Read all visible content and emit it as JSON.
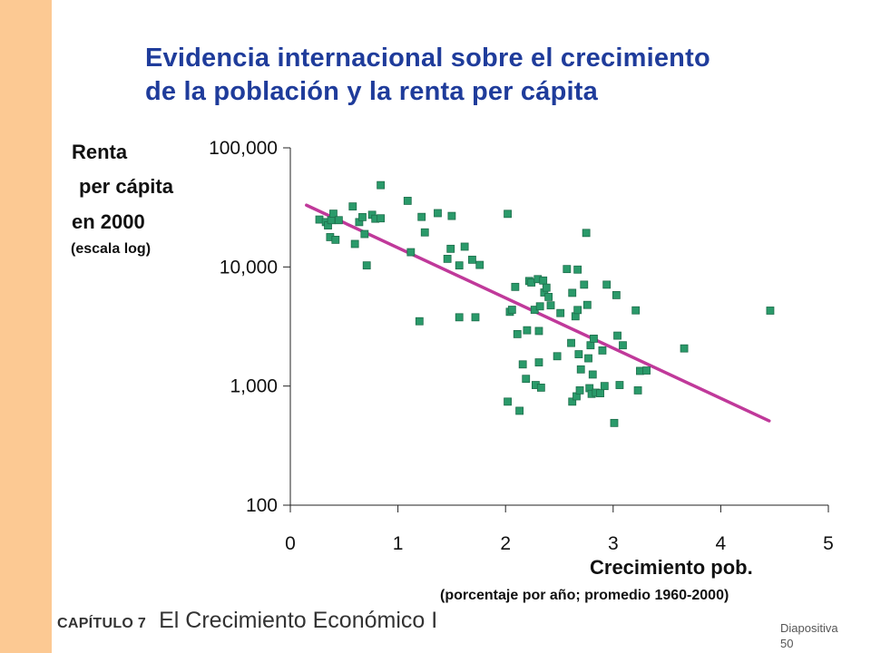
{
  "slide": {
    "title_line1": "Evidencia internacional sobre el crecimiento",
    "title_line2": "de la población y la renta per cápita",
    "chapter": "CAPÍTULO 7",
    "chapter_title": "El Crecimiento Económico I",
    "slide_label": "Diapositiva",
    "slide_number": "50",
    "accent_color": "#1f3c9b",
    "sidebar_color": "#fcc993"
  },
  "chart_data": {
    "type": "scatter",
    "y_scale": "log",
    "ylabel_lines": [
      "Renta",
      "per cápita",
      "en 2000"
    ],
    "ylabel_note": "(escala log)",
    "xlabel": "Crecimiento pob.",
    "xlabel_note": "(porcentaje por año; promedio 1960-2000)",
    "xlim": [
      0,
      5
    ],
    "ylim": [
      100,
      100000
    ],
    "x_ticks": [
      "0",
      "1",
      "2",
      "3",
      "4",
      "5"
    ],
    "y_ticks": [
      {
        "value": 100,
        "label": "100"
      },
      {
        "value": 1000,
        "label": "1,000"
      },
      {
        "value": 10000,
        "label": "10,000"
      },
      {
        "value": 100000,
        "label": "100,000"
      }
    ],
    "grid": false,
    "marker_color": "#2a9a6a",
    "trend_color": "#c0399a",
    "trend_line": {
      "x": [
        0.15,
        4.45
      ],
      "y": [
        33000,
        510
      ]
    },
    "points": [
      {
        "x": 0.27,
        "y": 25000
      },
      {
        "x": 0.33,
        "y": 23800
      },
      {
        "x": 0.35,
        "y": 22300
      },
      {
        "x": 0.38,
        "y": 24700
      },
      {
        "x": 0.37,
        "y": 17800
      },
      {
        "x": 0.4,
        "y": 28000
      },
      {
        "x": 0.42,
        "y": 16900
      },
      {
        "x": 0.45,
        "y": 24700
      },
      {
        "x": 0.58,
        "y": 32200
      },
      {
        "x": 0.6,
        "y": 15600
      },
      {
        "x": 0.64,
        "y": 23800
      },
      {
        "x": 0.67,
        "y": 26200
      },
      {
        "x": 0.69,
        "y": 18900
      },
      {
        "x": 0.71,
        "y": 10300
      },
      {
        "x": 0.76,
        "y": 27400
      },
      {
        "x": 0.79,
        "y": 25400
      },
      {
        "x": 0.84,
        "y": 25600
      },
      {
        "x": 0.84,
        "y": 48600
      },
      {
        "x": 1.09,
        "y": 35900
      },
      {
        "x": 1.12,
        "y": 13300
      },
      {
        "x": 1.2,
        "y": 3500
      },
      {
        "x": 1.22,
        "y": 26300
      },
      {
        "x": 1.25,
        "y": 19500
      },
      {
        "x": 1.37,
        "y": 28300
      },
      {
        "x": 1.46,
        "y": 11700
      },
      {
        "x": 1.49,
        "y": 14200
      },
      {
        "x": 1.5,
        "y": 26800
      },
      {
        "x": 1.57,
        "y": 10300
      },
      {
        "x": 1.57,
        "y": 3780
      },
      {
        "x": 1.62,
        "y": 14800
      },
      {
        "x": 1.69,
        "y": 11500
      },
      {
        "x": 1.72,
        "y": 3780
      },
      {
        "x": 1.76,
        "y": 10400
      },
      {
        "x": 2.02,
        "y": 27900
      },
      {
        "x": 2.02,
        "y": 740
      },
      {
        "x": 2.04,
        "y": 4200
      },
      {
        "x": 2.06,
        "y": 4370
      },
      {
        "x": 2.09,
        "y": 6800
      },
      {
        "x": 2.11,
        "y": 2730
      },
      {
        "x": 2.13,
        "y": 620
      },
      {
        "x": 2.16,
        "y": 1520
      },
      {
        "x": 2.19,
        "y": 1150
      },
      {
        "x": 2.2,
        "y": 2940
      },
      {
        "x": 2.22,
        "y": 7620
      },
      {
        "x": 2.24,
        "y": 7400
      },
      {
        "x": 2.27,
        "y": 4370
      },
      {
        "x": 2.28,
        "y": 1020
      },
      {
        "x": 2.3,
        "y": 7900
      },
      {
        "x": 2.31,
        "y": 2900
      },
      {
        "x": 2.31,
        "y": 1580
      },
      {
        "x": 2.32,
        "y": 4670
      },
      {
        "x": 2.33,
        "y": 970
      },
      {
        "x": 2.35,
        "y": 7690
      },
      {
        "x": 2.36,
        "y": 6100
      },
      {
        "x": 2.38,
        "y": 6700
      },
      {
        "x": 2.4,
        "y": 5600
      },
      {
        "x": 2.42,
        "y": 4760
      },
      {
        "x": 2.48,
        "y": 1780
      },
      {
        "x": 2.51,
        "y": 4100
      },
      {
        "x": 2.57,
        "y": 9600
      },
      {
        "x": 2.61,
        "y": 2300
      },
      {
        "x": 2.62,
        "y": 6060
      },
      {
        "x": 2.62,
        "y": 740
      },
      {
        "x": 2.65,
        "y": 3850
      },
      {
        "x": 2.66,
        "y": 820
      },
      {
        "x": 2.67,
        "y": 9500
      },
      {
        "x": 2.67,
        "y": 4350
      },
      {
        "x": 2.68,
        "y": 1850
      },
      {
        "x": 2.69,
        "y": 920
      },
      {
        "x": 2.7,
        "y": 1380
      },
      {
        "x": 2.73,
        "y": 7100
      },
      {
        "x": 2.75,
        "y": 19300
      },
      {
        "x": 2.76,
        "y": 4800
      },
      {
        "x": 2.77,
        "y": 1710
      },
      {
        "x": 2.78,
        "y": 960
      },
      {
        "x": 2.79,
        "y": 2200
      },
      {
        "x": 2.8,
        "y": 860
      },
      {
        "x": 2.81,
        "y": 1250
      },
      {
        "x": 2.82,
        "y": 2500
      },
      {
        "x": 2.84,
        "y": 880
      },
      {
        "x": 2.88,
        "y": 870
      },
      {
        "x": 2.9,
        "y": 1990
      },
      {
        "x": 2.92,
        "y": 1000
      },
      {
        "x": 2.94,
        "y": 7100
      },
      {
        "x": 3.01,
        "y": 490
      },
      {
        "x": 3.03,
        "y": 5800
      },
      {
        "x": 3.04,
        "y": 2650
      },
      {
        "x": 3.06,
        "y": 1020
      },
      {
        "x": 3.09,
        "y": 2200
      },
      {
        "x": 3.21,
        "y": 4320
      },
      {
        "x": 3.23,
        "y": 920
      },
      {
        "x": 3.25,
        "y": 1340
      },
      {
        "x": 3.31,
        "y": 1350
      },
      {
        "x": 3.66,
        "y": 2070
      },
      {
        "x": 4.46,
        "y": 4300
      }
    ]
  }
}
